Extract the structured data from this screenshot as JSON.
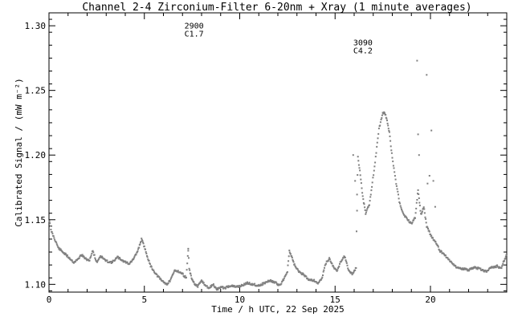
{
  "chart_data": {
    "type": "scatter",
    "title": "Channel 2-4   Zirconium-Filter   6-20nm + Xray   (1 minute averages)",
    "xlabel": "Time / h UTC, 22 Sep 2025",
    "ylabel": "Calibrated Signal / (mW m⁻²)",
    "xlim": [
      0,
      24
    ],
    "ylim": [
      1.094,
      1.31
    ],
    "xticks": [
      0,
      5,
      10,
      15,
      20
    ],
    "xtick_labels": [
      "0",
      "5",
      "10",
      "15",
      "20"
    ],
    "yticks": [
      1.1,
      1.15,
      1.2,
      1.25,
      1.3
    ],
    "ytick_labels": [
      "1.10",
      "1.15",
      "1.20",
      "1.25",
      "1.30"
    ],
    "grid": false,
    "marker_color": "#808080",
    "annotations": [
      {
        "x": 7.1,
        "y": 1.298,
        "lines": [
          "2900",
          "C1.7"
        ]
      },
      {
        "x": 15.95,
        "y": 1.285,
        "lines": [
          "3090",
          "C4.2"
        ]
      }
    ],
    "series": [
      {
        "x": [
          0.0,
          0.1,
          0.3,
          0.5,
          0.8,
          1.1,
          1.3,
          1.5,
          1.7,
          1.9,
          2.1,
          2.3,
          2.5,
          2.7,
          3.0,
          3.3,
          3.6,
          3.9,
          4.2,
          4.4,
          4.6,
          4.75,
          4.85,
          5.0,
          5.3,
          5.6,
          5.9,
          6.2,
          6.4,
          6.6,
          6.8,
          7.0,
          7.2,
          7.3,
          7.35,
          7.45,
          7.6,
          7.8,
          8.0,
          8.2,
          8.4,
          8.6,
          8.8,
          9.0,
          9.2,
          9.5,
          9.8,
          10.1,
          10.4,
          10.7,
          11.0,
          11.3,
          11.6,
          11.9,
          12.1,
          12.3,
          12.5,
          12.6,
          12.75,
          12.9,
          13.1,
          13.3,
          13.6,
          13.9,
          14.1,
          14.3,
          14.5,
          14.7,
          14.9,
          15.1,
          15.3,
          15.5,
          15.7,
          15.9,
          16.0,
          16.1,
          16.15,
          16.2,
          16.3,
          16.45,
          16.6,
          16.8,
          16.9,
          17.1,
          17.3,
          17.5,
          17.6,
          17.7,
          17.85,
          18.0,
          18.2,
          18.4,
          18.6,
          18.8,
          19.0,
          19.2,
          19.35,
          19.5,
          19.65,
          19.8,
          19.95,
          20.1,
          20.3,
          20.5,
          20.8,
          21.1,
          21.4,
          21.7,
          22.0,
          22.3,
          22.6,
          22.9,
          23.2,
          23.5,
          23.7,
          23.85,
          24.0
        ],
        "y": [
          1.152,
          1.142,
          1.135,
          1.128,
          1.124,
          1.12,
          1.117,
          1.119,
          1.123,
          1.12,
          1.118,
          1.126,
          1.117,
          1.122,
          1.118,
          1.117,
          1.121,
          1.118,
          1.116,
          1.119,
          1.124,
          1.13,
          1.135,
          1.129,
          1.115,
          1.108,
          1.103,
          1.1,
          1.104,
          1.111,
          1.11,
          1.108,
          1.105,
          1.128,
          1.112,
          1.106,
          1.101,
          1.098,
          1.103,
          1.099,
          1.097,
          1.1,
          1.096,
          1.098,
          1.097,
          1.099,
          1.098,
          1.099,
          1.101,
          1.1,
          1.099,
          1.101,
          1.103,
          1.101,
          1.099,
          1.104,
          1.11,
          1.126,
          1.12,
          1.114,
          1.11,
          1.108,
          1.104,
          1.103,
          1.101,
          1.104,
          1.116,
          1.12,
          1.114,
          1.11,
          1.118,
          1.122,
          1.111,
          1.108,
          1.11,
          1.113,
          1.17,
          1.198,
          1.188,
          1.168,
          1.155,
          1.162,
          1.172,
          1.195,
          1.22,
          1.232,
          1.233,
          1.228,
          1.217,
          1.198,
          1.178,
          1.162,
          1.154,
          1.15,
          1.147,
          1.152,
          1.173,
          1.154,
          1.16,
          1.145,
          1.14,
          1.136,
          1.132,
          1.126,
          1.122,
          1.117,
          1.113,
          1.112,
          1.111,
          1.113,
          1.112,
          1.11,
          1.113,
          1.114,
          1.112,
          1.118,
          1.123
        ]
      },
      {
        "x": [
          7.3,
          15.95,
          16.05,
          16.15,
          19.3,
          19.35,
          19.4,
          19.8,
          19.85,
          19.95,
          20.05,
          20.15,
          20.25
        ],
        "y": [
          1.126,
          1.2,
          1.18,
          1.157,
          1.273,
          1.216,
          1.2,
          1.262,
          1.178,
          1.184,
          1.219,
          1.18,
          1.16
        ]
      }
    ]
  }
}
